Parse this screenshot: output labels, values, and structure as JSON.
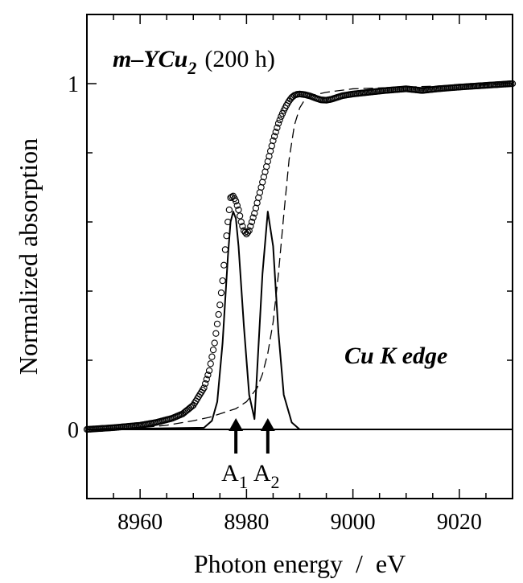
{
  "chart_data": {
    "type": "line",
    "title_main": "m–YCu",
    "title_sub": "2",
    "title_suffix": "(200 h)",
    "annotation": "Cu K edge",
    "xlabel": "Photon energy  /  eV",
    "ylabel": "Normalized absorption",
    "xlim": [
      8950,
      9030
    ],
    "ylim": [
      -0.2,
      1.2
    ],
    "x_ticks": [
      8960,
      8980,
      9000,
      9020
    ],
    "x_tick_labels": [
      "8960",
      "8980",
      "9000",
      "9020"
    ],
    "y_ticks": [
      0,
      1
    ],
    "y_tick_labels": [
      "0",
      "1"
    ],
    "grid": false,
    "series": [
      {
        "style": "open-circles",
        "x": [
          8950,
          8955,
          8960,
          8963,
          8966,
          8968,
          8970,
          8972,
          8973,
          8974,
          8975,
          8975.5,
          8976,
          8976.5,
          8977,
          8977.5,
          8978,
          8978.5,
          8979,
          8979.5,
          8980,
          8980.5,
          8981,
          8981.5,
          8982,
          8982.5,
          8983,
          8983.5,
          8984,
          8984.5,
          8985,
          8985.5,
          8986,
          8986.5,
          8987,
          8987.5,
          8988,
          8988.5,
          8989,
          8989.5,
          8990,
          8991,
          8992,
          8993,
          8994,
          8995,
          8996,
          8997,
          8998,
          9000,
          9003,
          9006,
          9010,
          9013,
          9016,
          9020,
          9025,
          9030
        ],
        "y": [
          0.0,
          0.005,
          0.012,
          0.02,
          0.032,
          0.045,
          0.07,
          0.12,
          0.17,
          0.25,
          0.36,
          0.43,
          0.52,
          0.6,
          0.67,
          0.675,
          0.66,
          0.635,
          0.6,
          0.575,
          0.565,
          0.575,
          0.6,
          0.625,
          0.655,
          0.685,
          0.715,
          0.745,
          0.775,
          0.805,
          0.835,
          0.86,
          0.885,
          0.905,
          0.922,
          0.937,
          0.95,
          0.96,
          0.966,
          0.969,
          0.97,
          0.968,
          0.964,
          0.958,
          0.953,
          0.952,
          0.955,
          0.96,
          0.965,
          0.97,
          0.975,
          0.98,
          0.985,
          0.98,
          0.985,
          0.99,
          0.995,
          1.0
        ]
      },
      {
        "style": "dashed",
        "x": [
          8950,
          8960,
          8965,
          8970,
          8973,
          8976,
          8978,
          8980,
          8982,
          8983,
          8984,
          8985,
          8986,
          8987,
          8988,
          8989,
          8990,
          8991,
          8992,
          8995,
          9000,
          9010,
          9020,
          9030
        ],
        "y": [
          0.0,
          0.005,
          0.012,
          0.025,
          0.035,
          0.05,
          0.06,
          0.08,
          0.12,
          0.16,
          0.22,
          0.31,
          0.45,
          0.62,
          0.78,
          0.88,
          0.93,
          0.955,
          0.965,
          0.975,
          0.985,
          0.99,
          0.995,
          1.0
        ]
      },
      {
        "style": "solid",
        "x": [
          8950,
          8972,
          8973.5,
          8974.5,
          8975.5,
          8976.5,
          8977,
          8977.5,
          8978,
          8978.5,
          8979.5,
          8980.5,
          8981.5,
          8983,
          8984,
          8985,
          8986,
          8987,
          8988.5,
          8990,
          9030
        ],
        "y": [
          0.0,
          0.005,
          0.025,
          0.08,
          0.25,
          0.5,
          0.6,
          0.63,
          0.61,
          0.53,
          0.3,
          0.1,
          0.03,
          0.45,
          0.63,
          0.53,
          0.28,
          0.1,
          0.02,
          0.0,
          0.0
        ]
      }
    ],
    "arrows": [
      {
        "x": 8978,
        "label": "A",
        "sub": "1"
      },
      {
        "x": 8984,
        "label": "A",
        "sub": "2"
      }
    ]
  }
}
